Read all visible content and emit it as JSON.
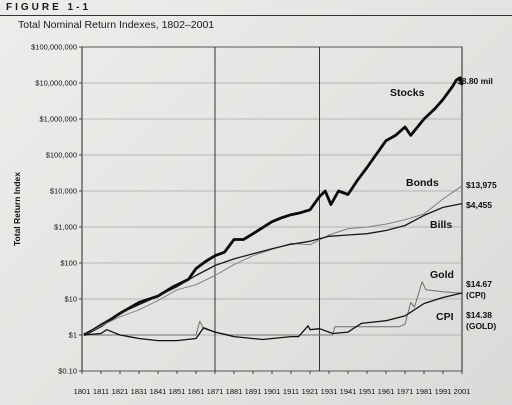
{
  "figure": {
    "label": "FIGURE 1-1",
    "title": "Total Nominal Return Indexes, 1802–2001"
  },
  "chart_data": {
    "type": "line",
    "title": "Total Nominal Return Indexes, 1802–2001",
    "xlabel": "",
    "ylabel": "Total Return Index",
    "y_scale": "log",
    "xlim": [
      1801,
      2001
    ],
    "ylim": [
      0.1,
      100000000
    ],
    "x_ticks": [
      1801,
      1811,
      1821,
      1831,
      1841,
      1851,
      1861,
      1871,
      1881,
      1891,
      1901,
      1911,
      1921,
      1931,
      1941,
      1951,
      1961,
      1971,
      1981,
      1991,
      2001
    ],
    "y_ticks": [
      {
        "value": 0.1,
        "label": "$0.10"
      },
      {
        "value": 1,
        "label": "$1"
      },
      {
        "value": 10,
        "label": "$10"
      },
      {
        "value": 100,
        "label": "$100"
      },
      {
        "value": 1000,
        "label": "$1,000"
      },
      {
        "value": 10000,
        "label": "$10,000"
      },
      {
        "value": 100000,
        "label": "$100,000"
      },
      {
        "value": 1000000,
        "label": "$1,000,000"
      },
      {
        "value": 10000000,
        "label": "$10,000,000"
      },
      {
        "value": 100000000,
        "label": "$100,000,000"
      }
    ],
    "reference_lines_x": [
      1871,
      1926
    ],
    "grid": "horizontal",
    "series": [
      {
        "name": "Stocks",
        "end_label": "$8.80 mil",
        "color": "#0a0a0a",
        "x": [
          1802,
          1811,
          1821,
          1831,
          1841,
          1849,
          1857,
          1861,
          1866,
          1871,
          1876,
          1881,
          1886,
          1891,
          1901,
          1906,
          1911,
          1916,
          1921,
          1926,
          1929,
          1932,
          1936,
          1941,
          1946,
          1951,
          1958,
          1961,
          1966,
          1971,
          1974,
          1981,
          1987,
          1991,
          1996,
          1998,
          2000,
          2001
        ],
        "y": [
          1,
          1.8,
          4,
          8,
          12,
          22,
          35,
          70,
          110,
          160,
          200,
          450,
          450,
          650,
          1400,
          1800,
          2200,
          2500,
          3000,
          7000,
          10000,
          4200,
          10000,
          8000,
          20000,
          45000,
          150000,
          250000,
          350000,
          600000,
          350000,
          1000000,
          2000000,
          3500000,
          8000000,
          12000000,
          14000000,
          8800000
        ]
      },
      {
        "name": "Bonds",
        "end_label": "$13,975",
        "color": "#7f7f7f",
        "x": [
          1802,
          1811,
          1821,
          1831,
          1841,
          1851,
          1861,
          1871,
          1881,
          1891,
          1901,
          1911,
          1921,
          1931,
          1941,
          1951,
          1961,
          1971,
          1981,
          1991,
          2001
        ],
        "y": [
          1,
          1.8,
          3.2,
          5,
          9,
          18,
          25,
          45,
          90,
          160,
          240,
          350,
          320,
          600,
          900,
          1000,
          1200,
          1600,
          2300,
          6000,
          13975
        ]
      },
      {
        "name": "Bills",
        "end_label": "$4,455",
        "color": "#1a1a1a",
        "x": [
          1802,
          1811,
          1821,
          1831,
          1841,
          1851,
          1861,
          1871,
          1881,
          1891,
          1901,
          1911,
          1921,
          1931,
          1941,
          1951,
          1961,
          1971,
          1981,
          1991,
          2001
        ],
        "y": [
          1,
          2,
          4,
          7,
          12,
          22,
          45,
          85,
          130,
          180,
          250,
          330,
          400,
          550,
          600,
          650,
          800,
          1100,
          2100,
          3500,
          4455
        ]
      },
      {
        "name": "Gold",
        "end_label": "$14.38 (GOLD)",
        "color": "#6e6e6e",
        "x": [
          1802,
          1861,
          1863,
          1865,
          1871,
          1879,
          1920,
          1926,
          1933,
          1934,
          1968,
          1971,
          1974,
          1976,
          1980,
          1982,
          1991,
          2001
        ],
        "y": [
          1,
          1,
          2.4,
          1.5,
          1.2,
          1,
          1,
          1,
          1,
          1.7,
          1.7,
          2,
          8,
          6,
          30,
          18,
          16,
          14.38
        ]
      },
      {
        "name": "CPI",
        "end_label": "$14.67 (CPI)",
        "color": "#111111",
        "x": [
          1802,
          1811,
          1814,
          1821,
          1831,
          1841,
          1851,
          1861,
          1865,
          1871,
          1881,
          1896,
          1911,
          1915,
          1920,
          1921,
          1926,
          1933,
          1941,
          1948,
          1961,
          1971,
          1981,
          1991,
          2001
        ],
        "y": [
          1,
          1.1,
          1.4,
          1,
          0.8,
          0.7,
          0.7,
          0.8,
          1.6,
          1.2,
          0.9,
          0.75,
          0.9,
          0.9,
          1.8,
          1.4,
          1.5,
          1.1,
          1.2,
          2.1,
          2.5,
          3.4,
          7.5,
          11,
          14.67
        ]
      }
    ]
  }
}
